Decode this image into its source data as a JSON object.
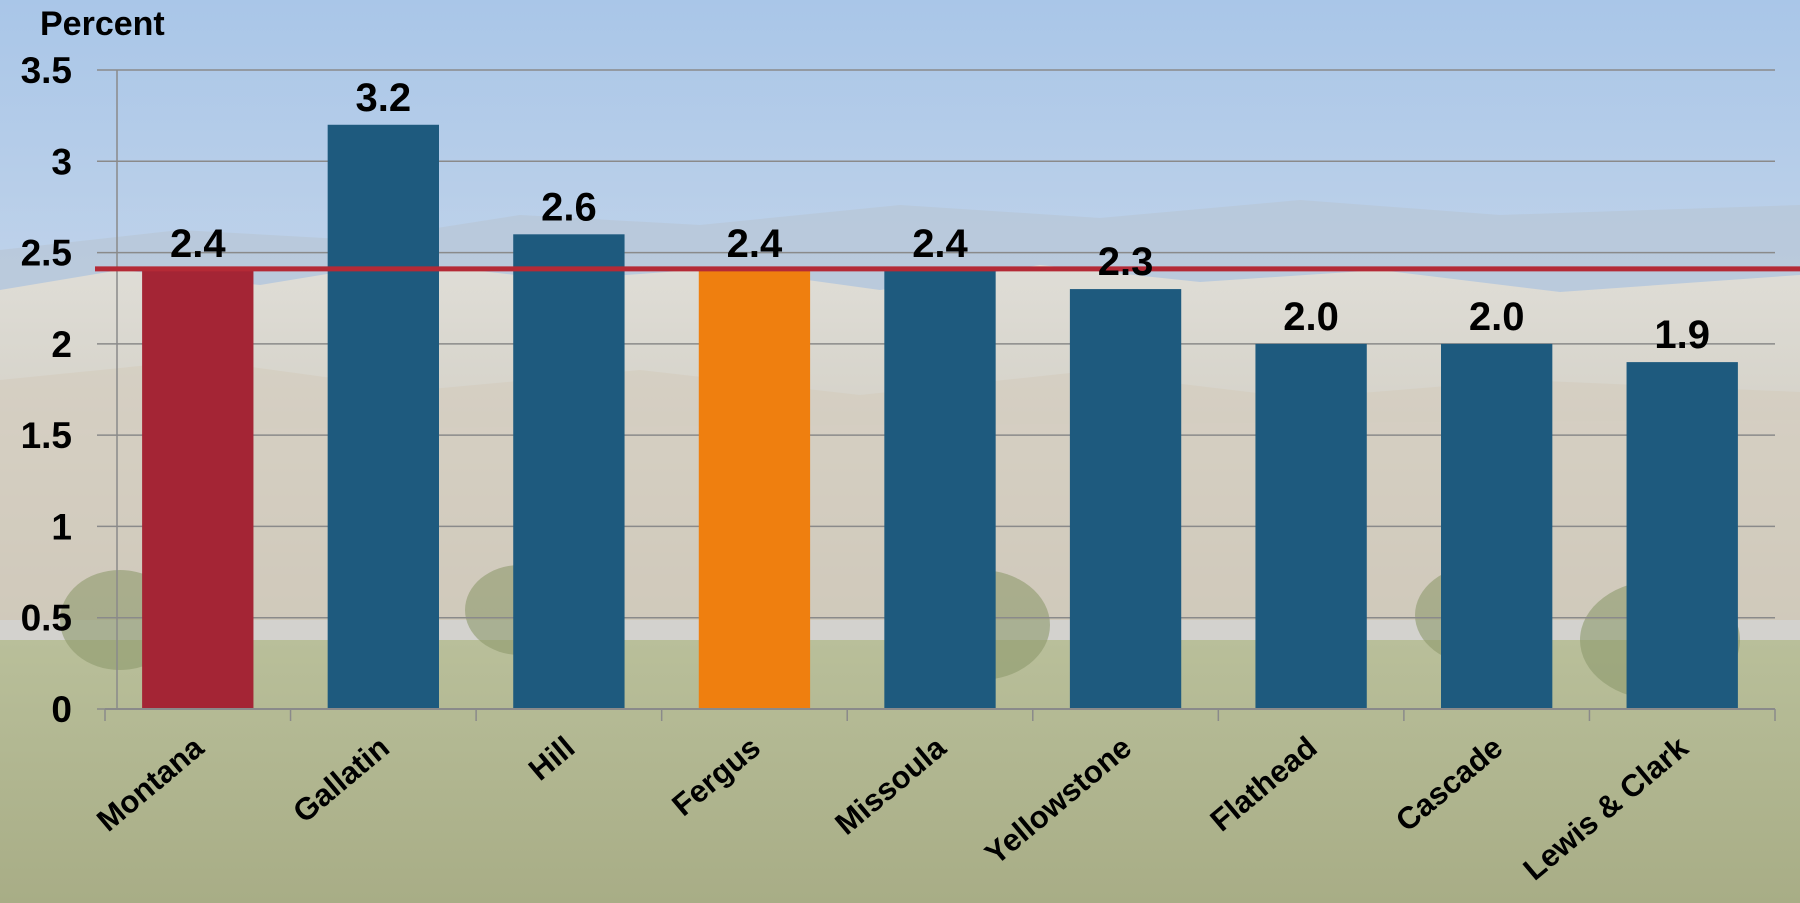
{
  "chart_data": {
    "type": "bar",
    "ylabel": "Percent",
    "ylim": [
      0,
      3.5
    ],
    "yticks": [
      "0",
      "0.5",
      "1",
      "1.5",
      "2",
      "2.5",
      "3",
      "3.5"
    ],
    "ytick_values": [
      0,
      0.5,
      1,
      1.5,
      2,
      2.5,
      3,
      3.5
    ],
    "categories": [
      "Montana",
      "Gallatin",
      "Hill",
      "Fergus",
      "Missoula",
      "Yellowstone",
      "Flathead",
      "Cascade",
      "Lewis & Clark"
    ],
    "values": [
      2.4,
      3.2,
      2.6,
      2.4,
      2.4,
      2.3,
      2.0,
      2.0,
      1.9
    ],
    "value_labels": [
      "2.4",
      "3.2",
      "2.6",
      "2.4",
      "2.4",
      "2.3",
      "2.0",
      "2.0",
      "1.9"
    ],
    "bar_colors": [
      "#a42535",
      "#1e5a7e",
      "#1e5a7e",
      "#ef7f0f",
      "#1e5a7e",
      "#1e5a7e",
      "#1e5a7e",
      "#1e5a7e",
      "#1e5a7e"
    ],
    "reference_line": {
      "value": 2.4,
      "color": "#b42a36"
    },
    "grid": true,
    "gridline_color": "#8a8a8a"
  }
}
